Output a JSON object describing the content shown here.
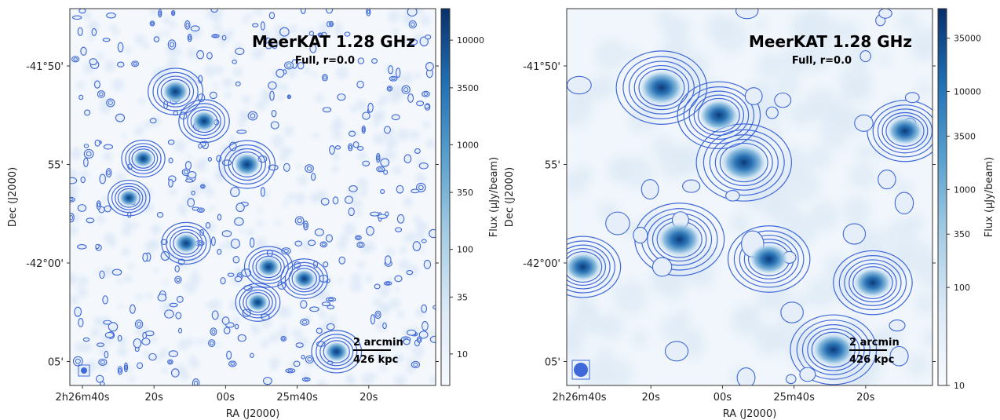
{
  "colors": {
    "background_light": "#f4f8fd",
    "noise": "#dde9f6",
    "contour": "#3f68d8",
    "source_core": "#0b3f7e",
    "source_mid": "#4f93c9",
    "source_edge": "#bcd8ee"
  },
  "chart_data": [
    {
      "type": "heatmap",
      "title": "MeerKAT 1.28 GHz",
      "subtitle": "Full, r=0.0",
      "xlabel": "RA (J2000)",
      "ylabel": "Dec (J2000)",
      "x_ticks": [
        "2h26m40s",
        "20s",
        "00s",
        "25m40s",
        "20s"
      ],
      "y_ticks": [
        "-41°50'",
        "55'",
        "-42°00'",
        "05'"
      ],
      "colorbar": {
        "label": "Flux (μJy/beam)",
        "scale": "log",
        "range": [
          5,
          20000
        ],
        "ticks": [
          10000,
          3500,
          1000,
          350,
          100,
          35,
          10
        ],
        "tick_labels": [
          "10000",
          "3500",
          "1000",
          "350",
          "100",
          "35",
          "10"
        ]
      },
      "scale_bar": {
        "angular": "2 arcmin",
        "physical": "426 kpc"
      },
      "grid": false,
      "sources": [
        {
          "ra": "2h26m14s",
          "dec": "-41°51.3'",
          "peak": 9000
        },
        {
          "ra": "2h25m54s",
          "dec": "-41°55.0'",
          "peak": 12000
        },
        {
          "ra": "2h26m06s",
          "dec": "-41°52.8'",
          "peak": 3500
        },
        {
          "ra": "2h26m11s",
          "dec": "-41°59.0'",
          "peak": 2500
        },
        {
          "ra": "2h25m48s",
          "dec": "-42°00.2'",
          "peak": 2000
        },
        {
          "ra": "2h25m29s",
          "dec": "-42°04.5'",
          "peak": 3000
        },
        {
          "ra": "2h25m38s",
          "dec": "-42°00.8'",
          "peak": 1500
        },
        {
          "ra": "2h25m51s",
          "dec": "-42°02.0'",
          "peak": 900
        },
        {
          "ra": "2h26m23s",
          "dec": "-41°54.7'",
          "peak": 700
        },
        {
          "ra": "2h26m27s",
          "dec": "-41°56.7'",
          "peak": 500
        }
      ]
    },
    {
      "type": "heatmap",
      "title": "MeerKAT 1.28 GHz",
      "subtitle": "Full, r=0.0",
      "xlabel": "RA (J2000)",
      "ylabel": "Dec (J2000)",
      "x_ticks": [
        "2h26m40s",
        "20s",
        "00s",
        "25m40s",
        "20s"
      ],
      "y_ticks": [
        "-41°50'",
        "55'",
        "-42°00'",
        "05'"
      ],
      "colorbar": {
        "label": "Flux (μJy/beam)",
        "scale": "log",
        "range": [
          10,
          70000
        ],
        "ticks": [
          35000,
          10000,
          3500,
          1000,
          350,
          100,
          10
        ],
        "tick_labels": [
          "35000",
          "10000",
          "3500",
          "1000",
          "350",
          "100",
          "10"
        ]
      },
      "scale_bar": {
        "angular": "2 arcmin",
        "physical": "426 kpc"
      },
      "grid": false,
      "sources": [
        {
          "ra": "2h26m17s",
          "dec": "-41°51.1'",
          "peak": 30000
        },
        {
          "ra": "2h25m54s",
          "dec": "-41°54.9'",
          "peak": 60000
        },
        {
          "ra": "2h26m01s",
          "dec": "-41°52.5'",
          "peak": 9000
        },
        {
          "ra": "2h26m12s",
          "dec": "-41°58.8'",
          "peak": 25000
        },
        {
          "ra": "2h25m47s",
          "dec": "-41°59.8'",
          "peak": 8000
        },
        {
          "ra": "2h25m29s",
          "dec": "-42°04.4'",
          "peak": 15000
        },
        {
          "ra": "2h25m18s",
          "dec": "-42°01.0'",
          "peak": 5000
        },
        {
          "ra": "2h25m09s",
          "dec": "-41°53.3'",
          "peak": 3000
        },
        {
          "ra": "2h26m39s",
          "dec": "-42°00.2'",
          "peak": 3000
        }
      ]
    }
  ]
}
